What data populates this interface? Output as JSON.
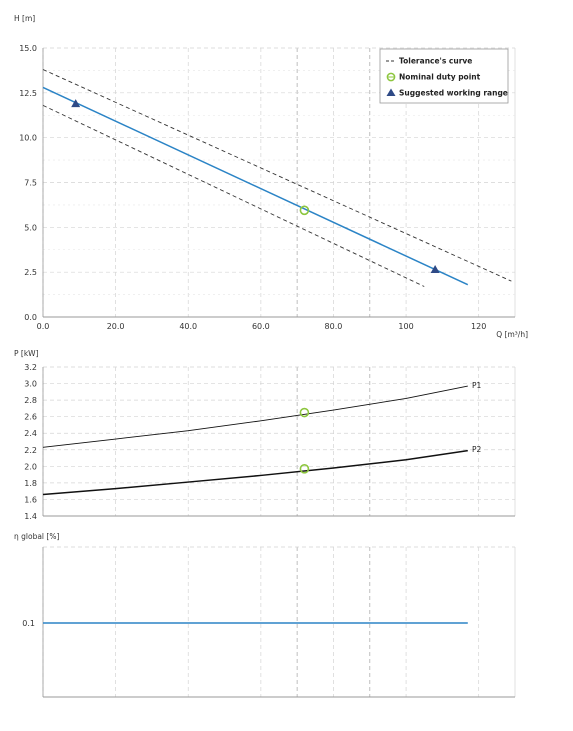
{
  "colors": {
    "curve": "#2b84c6",
    "tolerance": "#333333",
    "nominal": "#8dc63f",
    "suggested": "#2e4a86",
    "power": "#111111",
    "grid": "#d4d4d4",
    "axis": "#999999"
  },
  "chart_data": [
    {
      "type": "line",
      "panel": "head",
      "ylabel": "H [m]",
      "xlabel": "Q [m³/h]",
      "xlim": [
        0,
        130
      ],
      "ylim": [
        0,
        15
      ],
      "x_ticks": [
        "0.0",
        "20.0",
        "40.0",
        "60.0",
        "80.0",
        "100",
        "120"
      ],
      "y_ticks": [
        "0.0",
        "2.5",
        "5.0",
        "7.5",
        "10.0",
        "12.5",
        "15.0"
      ],
      "grid": true,
      "legend_position": "top-right",
      "legend": [
        {
          "label": "Tolerance's curve",
          "symbol": "dashed-line"
        },
        {
          "label": "Nominal duty point",
          "symbol": "circle"
        },
        {
          "label": "Suggested working range",
          "symbol": "triangle"
        }
      ],
      "series": [
        {
          "style": "solid",
          "x": [
            0,
            117
          ],
          "y": [
            12.8,
            1.8
          ]
        },
        {
          "style": "dashed",
          "role": "tolerance-upper",
          "x": [
            0,
            129
          ],
          "y": [
            13.8,
            2.0
          ]
        },
        {
          "style": "dashed",
          "role": "tolerance-lower",
          "x": [
            0,
            105
          ],
          "y": [
            11.8,
            1.7
          ]
        }
      ],
      "points": [
        {
          "role": "nominal",
          "x": 72,
          "y": 5.95
        },
        {
          "role": "suggested",
          "x": 9,
          "y": 11.9
        },
        {
          "role": "suggested",
          "x": 108,
          "y": 2.65
        }
      ]
    },
    {
      "type": "line",
      "panel": "power",
      "ylabel": "P [kW]",
      "xlim": [
        0,
        130
      ],
      "ylim": [
        1.4,
        3.2
      ],
      "y_ticks": [
        "1.4",
        "1.6",
        "1.8",
        "2.0",
        "2.2",
        "2.4",
        "2.6",
        "2.8",
        "3.0",
        "3.2"
      ],
      "grid": true,
      "series": [
        {
          "name": "P1",
          "x": [
            0,
            20,
            40,
            60,
            80,
            100,
            117
          ],
          "y": [
            2.23,
            2.33,
            2.43,
            2.55,
            2.68,
            2.82,
            2.97
          ]
        },
        {
          "name": "P2",
          "x": [
            0,
            20,
            40,
            60,
            80,
            100,
            117
          ],
          "y": [
            1.66,
            1.73,
            1.81,
            1.89,
            1.98,
            2.08,
            2.19
          ]
        }
      ],
      "points": [
        {
          "role": "nominal",
          "x": 72,
          "y": 2.65
        },
        {
          "role": "nominal",
          "x": 72,
          "y": 1.97
        }
      ]
    },
    {
      "type": "line",
      "panel": "efficiency",
      "ylabel": "η global [%]",
      "xlim": [
        0,
        130
      ],
      "y_ticks": [
        "0.1"
      ],
      "grid": true,
      "series": [
        {
          "x": [
            0,
            117
          ],
          "y": [
            0.1,
            0.1
          ]
        }
      ]
    }
  ]
}
